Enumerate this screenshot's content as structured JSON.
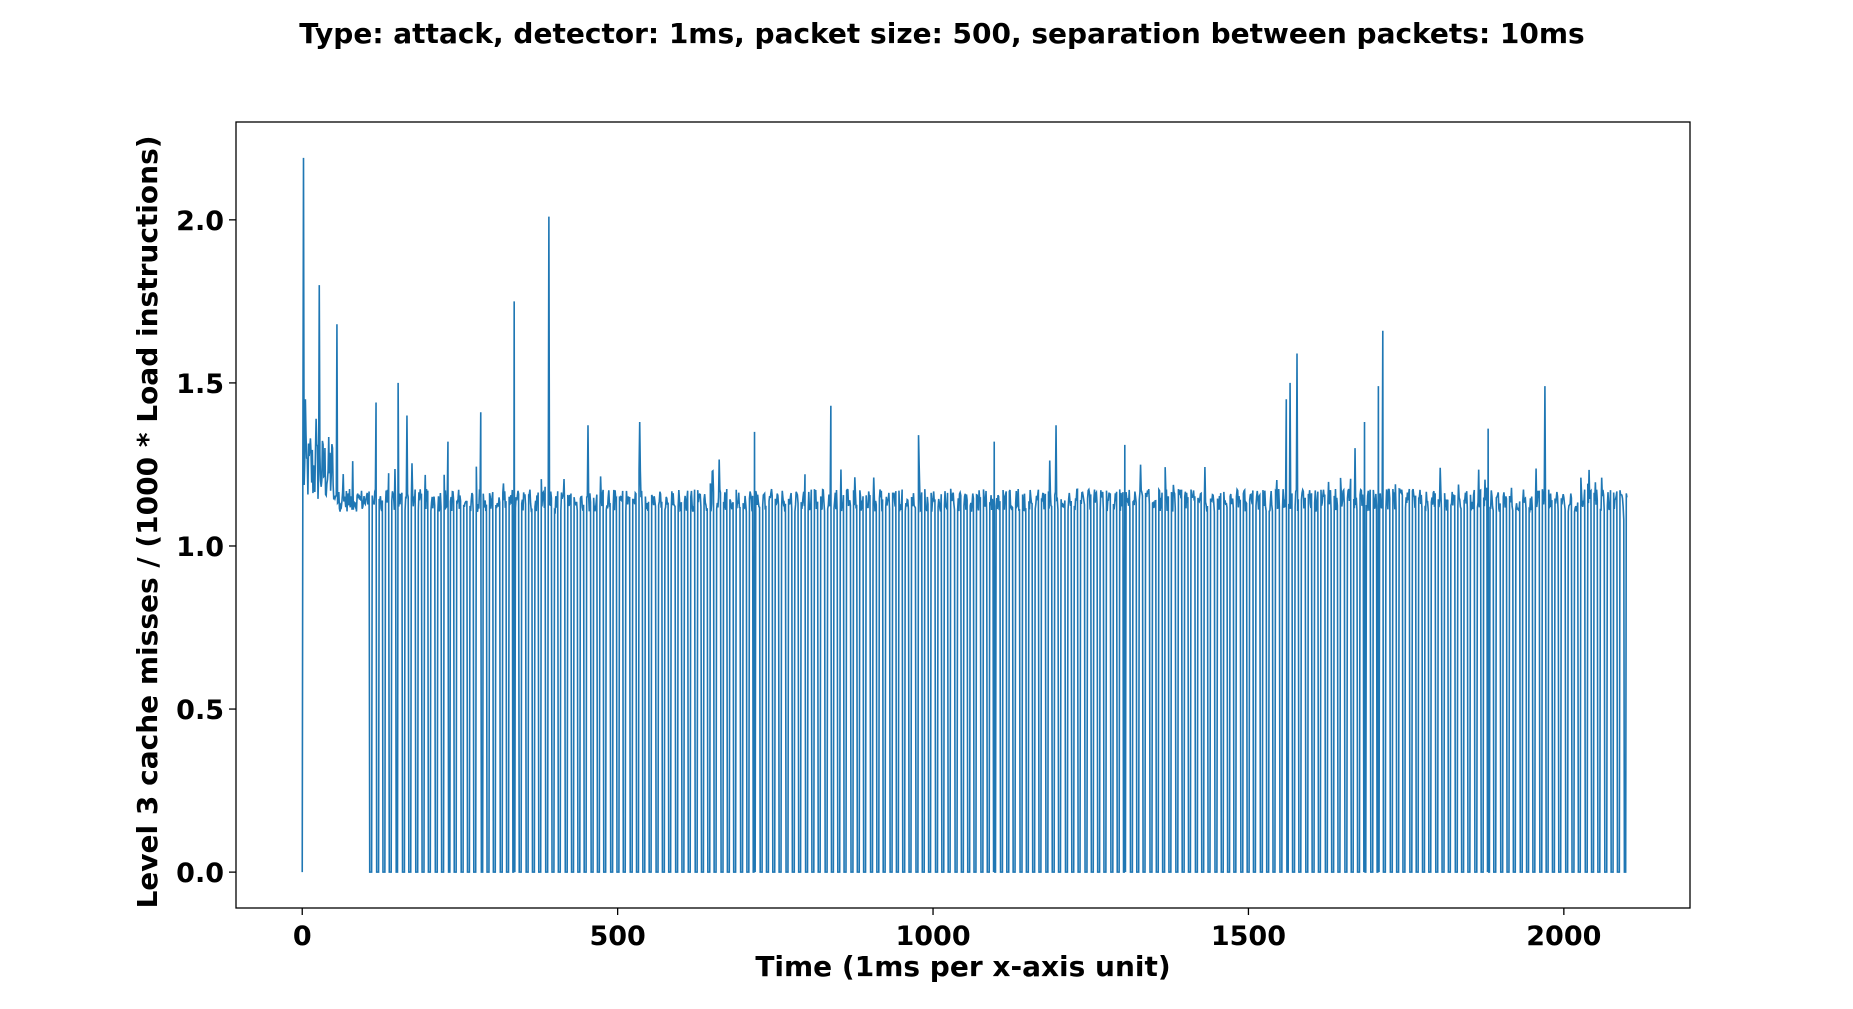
{
  "chart_data": {
    "type": "line",
    "title": "Type: attack,   detector: 1ms,   packet size: 500,   separation between packets: 10ms",
    "xlabel": "Time (1ms per x-axis unit)",
    "ylabel": "Level 3 cache misses / (1000 * Load instructions)",
    "xlim": [
      -105,
      2200
    ],
    "ylim": [
      -0.11,
      2.3
    ],
    "x_ticks": [
      0,
      500,
      1000,
      1500,
      2000
    ],
    "x_tick_labels": [
      "0",
      "500",
      "1000",
      "1500",
      "2000"
    ],
    "y_ticks": [
      0.0,
      0.5,
      1.0,
      1.5,
      2.0
    ],
    "y_tick_labels": [
      "0.0",
      "0.5",
      "1.0",
      "1.5",
      "2.0"
    ],
    "grid": false,
    "line_color": "#1f77b4",
    "series": [
      {
        "name": "",
        "x_start": 0,
        "x_end": 2100,
        "baseline": 1.14,
        "drop_period": 10.3,
        "drop_start": 107,
        "drop_width": 4,
        "drop_value": 0.0,
        "spikes": [
          {
            "x": 0,
            "y": 0.0
          },
          {
            "x": 2,
            "y": 2.19
          },
          {
            "x": 5,
            "y": 1.45
          },
          {
            "x": 13,
            "y": 1.33
          },
          {
            "x": 22,
            "y": 1.39
          },
          {
            "x": 27,
            "y": 1.8
          },
          {
            "x": 55,
            "y": 1.68
          },
          {
            "x": 80,
            "y": 1.26
          },
          {
            "x": 117,
            "y": 1.44
          },
          {
            "x": 152,
            "y": 1.5
          },
          {
            "x": 166,
            "y": 1.4
          },
          {
            "x": 231,
            "y": 1.32
          },
          {
            "x": 283,
            "y": 1.41
          },
          {
            "x": 336,
            "y": 1.75
          },
          {
            "x": 391,
            "y": 2.01
          },
          {
            "x": 453,
            "y": 1.37
          },
          {
            "x": 535,
            "y": 1.38
          },
          {
            "x": 717,
            "y": 1.35
          },
          {
            "x": 838,
            "y": 1.43
          },
          {
            "x": 977,
            "y": 1.34
          },
          {
            "x": 1097,
            "y": 1.32
          },
          {
            "x": 1195,
            "y": 1.37
          },
          {
            "x": 1304,
            "y": 1.31
          },
          {
            "x": 1560,
            "y": 1.45
          },
          {
            "x": 1566,
            "y": 1.5
          },
          {
            "x": 1577,
            "y": 1.59
          },
          {
            "x": 1669,
            "y": 1.3
          },
          {
            "x": 1684,
            "y": 1.38
          },
          {
            "x": 1706,
            "y": 1.49
          },
          {
            "x": 1713,
            "y": 1.66
          },
          {
            "x": 1804,
            "y": 1.24
          },
          {
            "x": 1880,
            "y": 1.36
          },
          {
            "x": 1970,
            "y": 1.49
          },
          {
            "x": 2095,
            "y": 1.08
          }
        ]
      }
    ]
  }
}
